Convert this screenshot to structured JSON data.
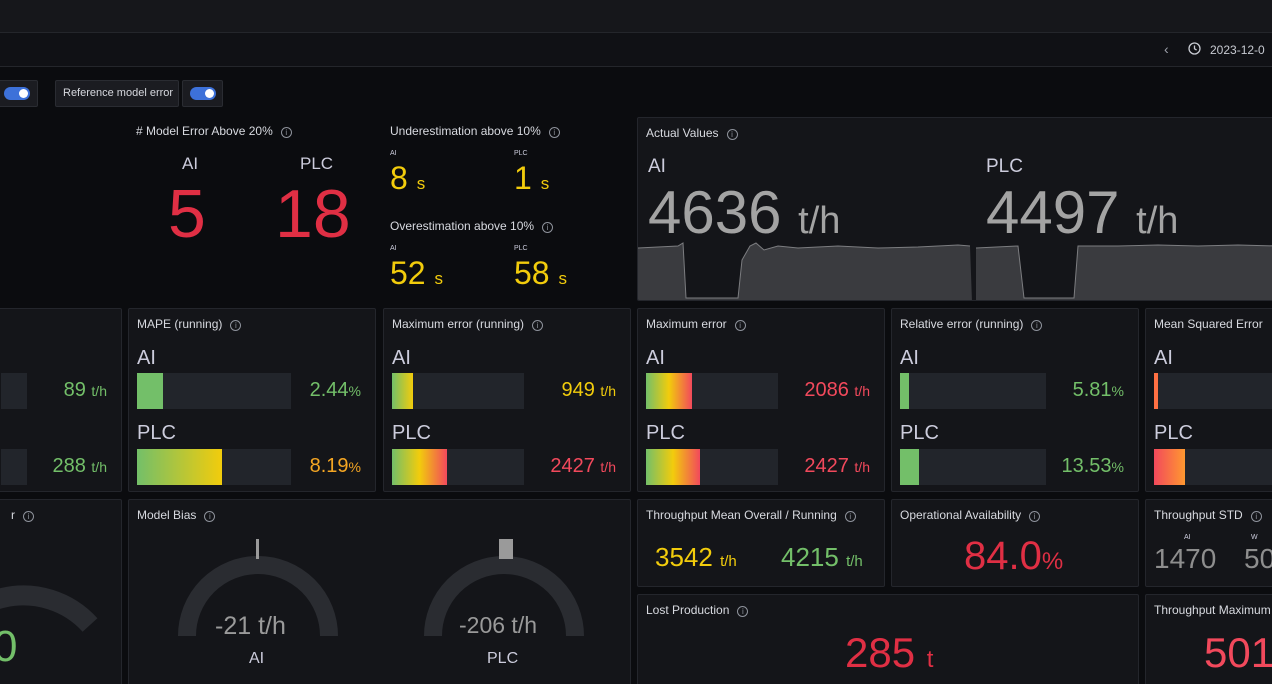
{
  "header": {
    "time_range": "2023-12-0"
  },
  "variables": {
    "ref_error_label": "Reference model error"
  },
  "model_error": {
    "title": "# Model Error Above 20%",
    "ai_label": "AI",
    "ai_value": "5",
    "plc_label": "PLC",
    "plc_value": "18"
  },
  "under": {
    "title": "Underestimation above 10%",
    "ai_label": "AI",
    "ai_value": "8",
    "ai_unit": "s",
    "plc_label": "PLC",
    "plc_value": "1",
    "plc_unit": "s"
  },
  "over": {
    "title": "Overestimation above 10%",
    "ai_label": "AI",
    "ai_value": "52",
    "ai_unit": "s",
    "plc_label": "PLC",
    "plc_value": "58",
    "plc_unit": "s"
  },
  "actual": {
    "title": "Actual Values",
    "ai_label": "AI",
    "ai_value": "4636",
    "ai_unit": "t/h",
    "plc_label": "PLC",
    "plc_value": "4497",
    "plc_unit": "t/h"
  },
  "left_bars": {
    "ai_value": "89",
    "ai_unit": "t/h",
    "plc_value": "288",
    "plc_unit": "t/h"
  },
  "mape": {
    "title": "MAPE (running)",
    "ai_label": "AI",
    "ai_value": "2.44",
    "ai_unit": "%",
    "ai_fraction": 0.17,
    "plc_label": "PLC",
    "plc_value": "8.19",
    "plc_unit": "%",
    "plc_fraction": 0.55
  },
  "max_err_running": {
    "title": "Maximum error (running)",
    "ai_label": "AI",
    "ai_value": "949",
    "ai_unit": "t/h",
    "ai_fraction": 0.16,
    "plc_label": "PLC",
    "plc_value": "2427",
    "plc_unit": "t/h",
    "plc_fraction": 0.42
  },
  "max_err": {
    "title": "Maximum error",
    "ai_label": "AI",
    "ai_value": "2086",
    "ai_unit": "t/h",
    "ai_fraction": 0.35,
    "plc_label": "PLC",
    "plc_value": "2427",
    "plc_unit": "t/h",
    "plc_fraction": 0.41
  },
  "rel_err": {
    "title": "Relative error (running)",
    "ai_label": "AI",
    "ai_value": "5.81",
    "ai_unit": "%",
    "ai_fraction": 0.06,
    "plc_label": "PLC",
    "plc_value": "13.53",
    "plc_unit": "%",
    "plc_fraction": 0.13
  },
  "mse": {
    "title": "Mean Squared Error",
    "ai_label": "AI",
    "plc_label": "PLC",
    "ai_fraction": 0.03,
    "plc_fraction": 0.24
  },
  "left_gauge": {
    "title_fragment": "r",
    "value_fragment": "0"
  },
  "model_bias": {
    "title": "Model Bias",
    "ai_value": "-21 t/h",
    "ai_label": "AI",
    "plc_value": "-206 t/h",
    "plc_label": "PLC"
  },
  "throughput_mean": {
    "title": "Throughput Mean Overall / Running",
    "overall_value": "3542",
    "overall_unit": "t/h",
    "running_value": "4215",
    "running_unit": "t/h"
  },
  "availability": {
    "title": "Operational Availability",
    "value": "84.0",
    "unit": "%"
  },
  "throughput_std": {
    "title": "Throughput STD",
    "ai_label": "AI",
    "ai_value": "1470",
    "second_label": "W",
    "second_value": "50"
  },
  "lost_production": {
    "title": "Lost Production",
    "value": "285",
    "unit": "t"
  },
  "throughput_max": {
    "title": "Throughput Maximum",
    "value": "501"
  },
  "colors": {
    "green": "#73bf69",
    "yellow": "#f2cc0c",
    "red": "#f2495c",
    "dark_red": "#e02f44",
    "toggle_blue": "#3d71d9",
    "panel_bg": "#141519"
  }
}
